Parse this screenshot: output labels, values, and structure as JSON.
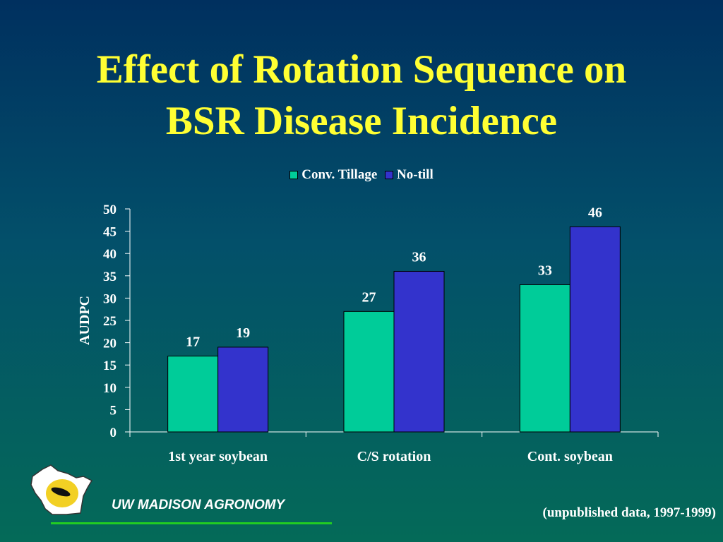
{
  "slide": {
    "title_line1": "Effect of Rotation Sequence on",
    "title_line2": "BSR Disease Incidence",
    "footer_label": "UW MADISON AGRONOMY",
    "note": "(unpublished data, 1997-1999)",
    "logo_icon": "wisconsin-state-icon"
  },
  "colors": {
    "title": "#ffff33",
    "conv_tillage": "#00cc99",
    "no_till": "#3333cc",
    "axis": "#ffffff",
    "footer_line": "#22cc22"
  },
  "chart_data": {
    "type": "bar",
    "categories": [
      "1st year soybean",
      "C/S rotation",
      "Cont. soybean"
    ],
    "series": [
      {
        "name": "Conv. Tillage",
        "values": [
          17,
          27,
          33
        ]
      },
      {
        "name": "No-till",
        "values": [
          19,
          36,
          46
        ]
      }
    ],
    "ylabel": "AUDPC",
    "ylim": [
      0,
      50
    ],
    "yticks": [
      0,
      5,
      10,
      15,
      20,
      25,
      30,
      35,
      40,
      45,
      50
    ],
    "grid": false,
    "legend": "top-center",
    "data_labels": true
  }
}
